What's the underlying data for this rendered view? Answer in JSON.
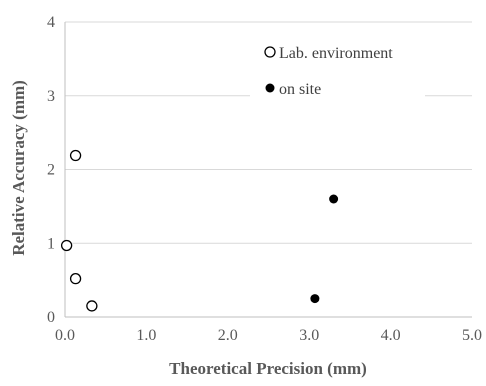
{
  "chart_data": {
    "type": "scatter",
    "xlabel": "Theoretical Precision (mm)",
    "ylabel": "Relative Accuracy (mm)",
    "xlim": [
      0,
      5
    ],
    "ylim": [
      0,
      4
    ],
    "x_ticks": [
      "0.0",
      "1.0",
      "2.0",
      "3.0",
      "4.0",
      "5.0"
    ],
    "y_ticks": [
      "0",
      "1",
      "2",
      "3",
      "4"
    ],
    "grid": "horizontal",
    "legend_position": "top-right",
    "series": [
      {
        "name": "Lab. environment",
        "marker": "open-circle",
        "color": "#000000",
        "points": [
          {
            "x": 0.02,
            "y": 0.97
          },
          {
            "x": 0.13,
            "y": 2.19
          },
          {
            "x": 0.13,
            "y": 0.52
          },
          {
            "x": 0.33,
            "y": 0.15
          }
        ]
      },
      {
        "name": "on site",
        "marker": "filled-circle",
        "color": "#000000",
        "points": [
          {
            "x": 3.07,
            "y": 0.25
          },
          {
            "x": 3.3,
            "y": 1.6
          }
        ]
      }
    ]
  }
}
